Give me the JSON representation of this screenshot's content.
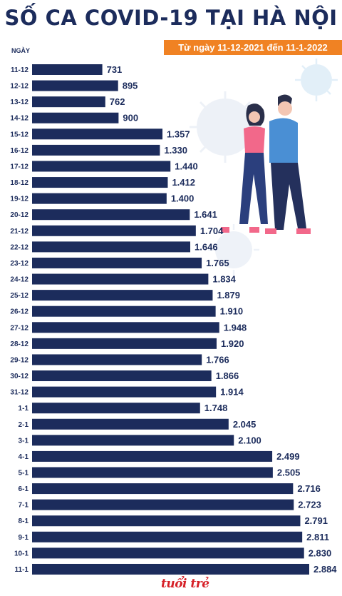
{
  "title": "SỐ CA COVID-19 TẠI HÀ NỘI",
  "subtitle": "Từ ngày 11-12-2021 đến 11-1-2022",
  "logo": "tuổi trẻ",
  "colors": {
    "bar": "#1c2c5c",
    "accent": "#f08223",
    "text": "#1c2c5c"
  },
  "chart_data": {
    "type": "bar",
    "orientation": "horizontal",
    "ylabel": "NGÀY",
    "categories": [
      "11-12",
      "12-12",
      "13-12",
      "14-12",
      "15-12",
      "16-12",
      "17-12",
      "18-12",
      "19-12",
      "20-12",
      "21-12",
      "22-12",
      "23-12",
      "24-12",
      "25-12",
      "26-12",
      "27-12",
      "28-12",
      "29-12",
      "30-12",
      "31-12",
      "1-1",
      "2-1",
      "3-1",
      "4-1",
      "5-1",
      "6-1",
      "7-1",
      "8-1",
      "9-1",
      "10-1",
      "11-1"
    ],
    "values": [
      731,
      895,
      762,
      900,
      1357,
      1330,
      1440,
      1412,
      1400,
      1641,
      1704,
      1646,
      1765,
      1834,
      1879,
      1910,
      1948,
      1920,
      1766,
      1866,
      1914,
      1748,
      2045,
      2100,
      2499,
      2505,
      2716,
      2723,
      2791,
      2811,
      2830,
      2884
    ],
    "value_labels": [
      "731",
      "895",
      "762",
      "900",
      "1.357",
      "1.330",
      "1.440",
      "1.412",
      "1.400",
      "1.641",
      "1.704",
      "1.646",
      "1.765",
      "1.834",
      "1.879",
      "1.910",
      "1.948",
      "1.920",
      "1.766",
      "1.866",
      "1.914",
      "1.748",
      "2.045",
      "2.100",
      "2.499",
      "2.505",
      "2.716",
      "2.723",
      "2.791",
      "2.811",
      "2.830",
      "2.884"
    ]
  }
}
